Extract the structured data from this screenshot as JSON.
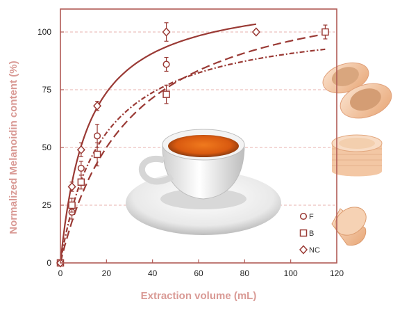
{
  "chart_data": {
    "type": "scatter",
    "xlabel": "Extraction volume (mL)",
    "ylabel": "Normalized Melanoidin content (%)",
    "xlim": [
      0,
      120
    ],
    "ylim": [
      0,
      105
    ],
    "xticks": [
      0,
      20,
      40,
      60,
      80,
      100,
      120
    ],
    "yticks": [
      0,
      25,
      50,
      75,
      100
    ],
    "grid": "dashed horizontal at y ticks",
    "legend_position": "bottom-right",
    "series": [
      {
        "name": "F",
        "marker": "circle",
        "line_style": "dash-dot",
        "fit": [
          107,
          18
        ],
        "points": [
          {
            "x": 0,
            "y": 0,
            "err": 0
          },
          {
            "x": 5,
            "y": 22,
            "err": 3
          },
          {
            "x": 9,
            "y": 41,
            "err": 3
          },
          {
            "x": 16,
            "y": 55,
            "err": 5
          },
          {
            "x": 46,
            "y": 86,
            "err": 3
          }
        ]
      },
      {
        "name": "B",
        "marker": "square",
        "line_style": "long-dash",
        "fit": [
          125,
          30
        ],
        "points": [
          {
            "x": 0,
            "y": 0,
            "err": 0
          },
          {
            "x": 5,
            "y": 25,
            "err": 3
          },
          {
            "x": 9,
            "y": 35,
            "err": 3
          },
          {
            "x": 16,
            "y": 47,
            "err": 5
          },
          {
            "x": 46,
            "y": 73,
            "err": 4
          },
          {
            "x": 115,
            "y": 100,
            "err": 3
          }
        ]
      },
      {
        "name": "NC",
        "marker": "diamond",
        "line_style": "solid",
        "fit": [
          118,
          12
        ],
        "points": [
          {
            "x": 0,
            "y": 0,
            "err": 0
          },
          {
            "x": 5,
            "y": 33,
            "err": 2
          },
          {
            "x": 9,
            "y": 49,
            "err": 3
          },
          {
            "x": 16,
            "y": 68,
            "err": 2
          },
          {
            "x": 46,
            "y": 100,
            "err": 4
          },
          {
            "x": 85,
            "y": 100,
            "err": 1
          }
        ]
      }
    ]
  },
  "colors": {
    "axis": "#b05a55",
    "series": "#9a3a35",
    "label": "#d99a95",
    "grid": "#e7b0ac"
  },
  "images": [
    "espresso-cup-icon",
    "paper-pod-icon",
    "plastic-capsule-icon",
    "aluminum-capsule-icon"
  ]
}
